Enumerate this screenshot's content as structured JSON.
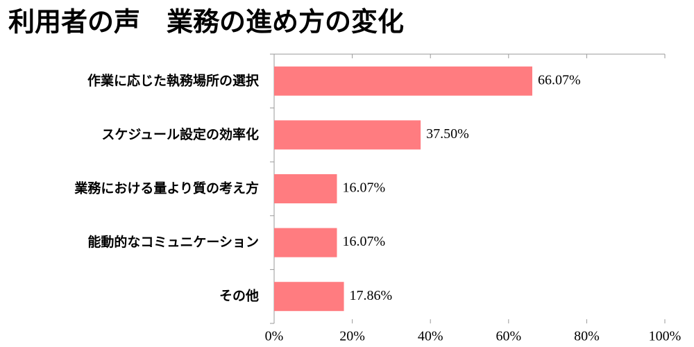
{
  "chart_data": {
    "type": "bar",
    "orientation": "horizontal",
    "title": "利用者の声　業務の進め方の変化",
    "categories": [
      "作業に応じた執務場所の選択",
      "スケジュール設定の効率化",
      "業務における量より質の考え方",
      "能動的なコミュニケーション",
      "その他"
    ],
    "values": [
      66.07,
      37.5,
      16.07,
      16.07,
      17.86
    ],
    "value_labels": [
      "66.07%",
      "37.50%",
      "16.07%",
      "16.07%",
      "17.86%"
    ],
    "color": "#ff7c80",
    "xlim": [
      0,
      100
    ],
    "xticks": [
      {
        "value": 0,
        "label": "0%"
      },
      {
        "value": 20,
        "label": "20%"
      },
      {
        "value": 40,
        "label": "40%"
      },
      {
        "value": 60,
        "label": "60%"
      },
      {
        "value": 80,
        "label": "80%"
      },
      {
        "value": 100,
        "label": "100%"
      }
    ]
  }
}
